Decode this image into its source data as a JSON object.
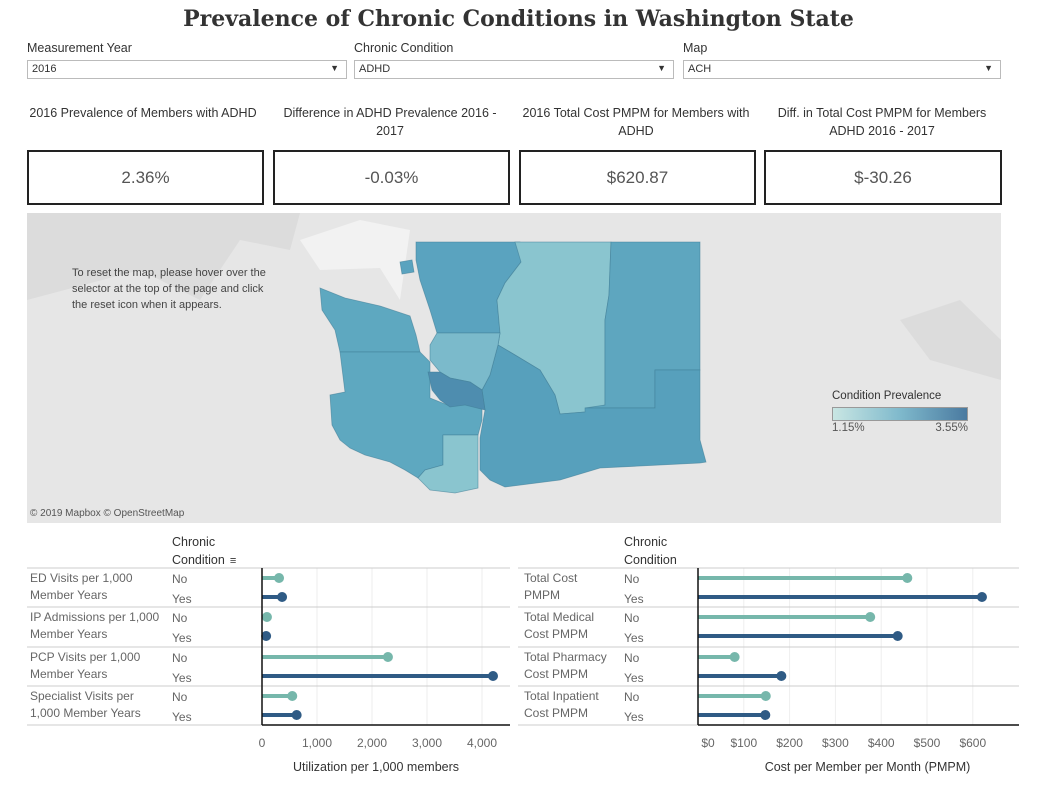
{
  "title": "Prevalence of Chronic Conditions in Washington State",
  "filters": [
    {
      "label": "Measurement Year",
      "value": "2016"
    },
    {
      "label": "Chronic Condition",
      "value": "ADHD"
    },
    {
      "label": "Map",
      "value": "ACH"
    }
  ],
  "kpis": [
    {
      "title": "2016 Prevalence of Members with ADHD",
      "value": "2.36%"
    },
    {
      "title": "Difference in ADHD Prevalence 2016 - 2017",
      "value": "-0.03%"
    },
    {
      "title": "2016 Total Cost PMPM for Members with ADHD",
      "value": "$620.87"
    },
    {
      "title": "Diff. in Total Cost PMPM for Members ADHD 2016 - 2017",
      "value": "$-30.26"
    }
  ],
  "map": {
    "note": "To reset the map, please hover over the selector at the top of the page and click the reset icon when it appears.",
    "legend_title": "Condition Prevalence",
    "legend_min": "1.15%",
    "legend_max": "3.55%",
    "attribution": "© 2019 Mapbox  © OpenStreetMap",
    "colors": {
      "low": "#c9e6e3",
      "high": "#4a7aa0",
      "background": "#e6e6e6"
    }
  },
  "chart_data": [
    {
      "type": "bar",
      "subtype": "lollipop",
      "header": "Chronic Condition",
      "xlabel": "Utilization per 1,000 members",
      "xlim": [
        0,
        4500
      ],
      "ticks": [
        "0",
        "1,000",
        "2,000",
        "3,000",
        "4,000"
      ],
      "tick_values": [
        0,
        1000,
        2000,
        3000,
        4000
      ],
      "categories": [
        "ED Visits per 1,000 Member Years",
        "IP Admissions per 1,000 Member Years",
        "PCP Visits per 1,000 Member Years",
        "Specialist Visits per 1,000 Member Years"
      ],
      "series": [
        {
          "name": "No",
          "color": "#76b7ab",
          "values": [
            310,
            90,
            2290,
            550
          ]
        },
        {
          "name": "Yes",
          "color": "#2f5b85",
          "values": [
            365,
            75,
            4200,
            630
          ]
        }
      ]
    },
    {
      "type": "bar",
      "subtype": "lollipop",
      "header": "Chronic Condition",
      "xlabel": "Cost per Member per Month (PMPM)",
      "xlim": [
        0,
        660
      ],
      "ticks": [
        "$0",
        "$100",
        "$200",
        "$300",
        "$400",
        "$500",
        "$600"
      ],
      "tick_values": [
        0,
        100,
        200,
        300,
        400,
        500,
        600
      ],
      "categories": [
        "Total Cost PMPM",
        "Total Medical Cost PMPM",
        "Total Pharmacy Cost PMPM",
        "Total Inpatient Cost PMPM"
      ],
      "series": [
        {
          "name": "No",
          "color": "#76b7ab",
          "values": [
            457,
            376,
            80,
            148
          ]
        },
        {
          "name": "Yes",
          "color": "#2f5b85",
          "values": [
            620,
            436,
            182,
            147
          ]
        }
      ]
    }
  ]
}
